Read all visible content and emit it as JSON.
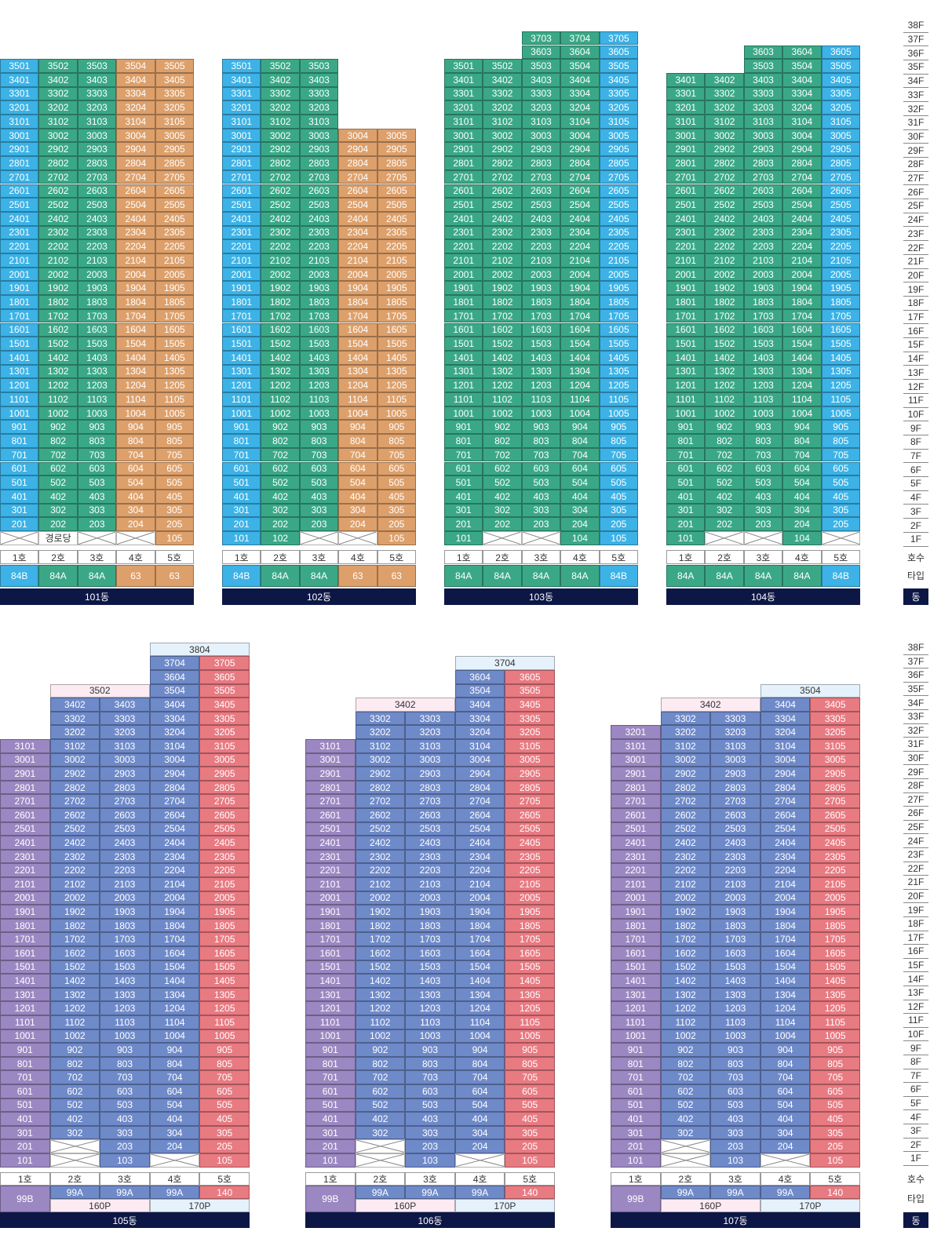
{
  "colors": {
    "blue": "#3cb2e6",
    "teal": "#3aa886",
    "orange": "#dda06b",
    "purple": "#9b87c1",
    "slate": "#6f8ac9",
    "red": "#e87a82",
    "penthouse_pink": "#fcebf3",
    "penthouse_blue": "#e6f2fb",
    "dong_navy": "#0d1746"
  },
  "floors_top": [
    "38F",
    "37F",
    "36F",
    "35F",
    "34F",
    "33F",
    "32F",
    "31F",
    "30F",
    "29F",
    "28F",
    "27F",
    "26F",
    "25F",
    "24F",
    "23F",
    "22F",
    "21F",
    "20F",
    "19F",
    "18F",
    "17F",
    "16F",
    "15F",
    "14F",
    "13F",
    "12F",
    "11F",
    "10F",
    "9F",
    "8F",
    "7F",
    "6F",
    "5F",
    "4F",
    "3F",
    "2F",
    "1F"
  ],
  "floors_bottom": [
    "38F",
    "37F",
    "36F",
    "35F",
    "34F",
    "33F",
    "32F",
    "31F",
    "30F",
    "29F",
    "28F",
    "27F",
    "26F",
    "25F",
    "24F",
    "23F",
    "22F",
    "21F",
    "20F",
    "19F",
    "18F",
    "17F",
    "16F",
    "15F",
    "14F",
    "13F",
    "12F",
    "11F",
    "10F",
    "9F",
    "8F",
    "7F",
    "6F",
    "5F",
    "4F",
    "3F",
    "2F",
    "1F"
  ],
  "legend": {
    "line": "호수",
    "type": "타입",
    "dong": "동"
  },
  "buildings_top": [
    {
      "name": "101동",
      "lines": [
        "1호",
        "2호",
        "3호",
        "4호",
        "5호"
      ],
      "types": [
        "84B",
        "84A",
        "84A",
        "63",
        "63"
      ],
      "col_colors": [
        "blue",
        "teal",
        "teal",
        "orange",
        "orange"
      ],
      "top_floor": [
        35,
        35,
        35,
        35,
        35
      ],
      "first_floor": [
        "x",
        "경로당",
        "x",
        "x",
        "105"
      ]
    },
    {
      "name": "102동",
      "lines": [
        "1호",
        "2호",
        "3호",
        "4호",
        "5호"
      ],
      "types": [
        "84B",
        "84A",
        "84A",
        "63",
        "63"
      ],
      "col_colors": [
        "blue",
        "teal",
        "teal",
        "orange",
        "orange"
      ],
      "top_floor": [
        35,
        35,
        35,
        30,
        30
      ],
      "first_floor": [
        "101",
        "102",
        "x",
        "x",
        "105"
      ]
    },
    {
      "name": "103동",
      "lines": [
        "1호",
        "2호",
        "3호",
        "4호",
        "5호"
      ],
      "types": [
        "84A",
        "84A",
        "84A",
        "84A",
        "84B"
      ],
      "col_colors": [
        "teal",
        "teal",
        "teal",
        "teal",
        "blue"
      ],
      "top_floor": [
        35,
        35,
        37,
        37,
        37
      ],
      "first_floor": [
        "101",
        "x",
        "x",
        "104",
        "105"
      ]
    },
    {
      "name": "104동",
      "lines": [
        "1호",
        "2호",
        "3호",
        "4호",
        "5호"
      ],
      "types": [
        "84A",
        "84A",
        "84A",
        "84A",
        "84B"
      ],
      "col_colors": [
        "teal",
        "teal",
        "teal",
        "teal",
        "blue"
      ],
      "top_floor": [
        34,
        34,
        36,
        36,
        36
      ],
      "first_floor": [
        "101",
        "x",
        "x",
        "104",
        "x"
      ]
    }
  ],
  "buildings_bottom": [
    {
      "name": "105동",
      "lines": [
        "1호",
        "2호",
        "3호",
        "4호",
        "5호"
      ],
      "type_top": [
        "99B",
        "99A",
        "99A",
        "99A",
        "140"
      ],
      "penthouse_types": [
        "160P",
        "170P"
      ],
      "penthouse_top": [
        "3502",
        "3804"
      ],
      "col_colors": [
        "purple",
        "slate",
        "slate",
        "slate",
        "red"
      ],
      "top_floor": [
        31,
        34,
        34,
        37,
        37
      ],
      "first_floor": [
        "101",
        "x",
        "103",
        "x",
        "105"
      ],
      "second_floor": [
        "201",
        "x",
        "203",
        "204",
        "205"
      ],
      "third_floor_2": "302"
    },
    {
      "name": "106동",
      "lines": [
        "1호",
        "2호",
        "3호",
        "4호",
        "5호"
      ],
      "type_top": [
        "99B",
        "99A",
        "99A",
        "99A",
        "140"
      ],
      "penthouse_types": [
        "160P",
        "170P"
      ],
      "penthouse_top": [
        "3402",
        "3704"
      ],
      "col_colors": [
        "purple",
        "slate",
        "slate",
        "slate",
        "red"
      ],
      "top_floor": [
        31,
        33,
        33,
        36,
        36
      ],
      "first_floor": [
        "101",
        "x",
        "103",
        "x",
        "105"
      ],
      "second_floor": [
        "201",
        "x",
        "203",
        "204",
        "205"
      ],
      "third_floor_2": "302"
    },
    {
      "name": "107동",
      "lines": [
        "1호",
        "2호",
        "3호",
        "4호",
        "5호"
      ],
      "type_top": [
        "99B",
        "99A",
        "99A",
        "99A",
        "140"
      ],
      "penthouse_types": [
        "160P",
        "170P"
      ],
      "penthouse_top": [
        "3402",
        "3504"
      ],
      "col_colors": [
        "purple",
        "slate",
        "slate",
        "slate",
        "red"
      ],
      "top_floor": [
        32,
        33,
        33,
        34,
        34
      ],
      "first_floor": [
        "101",
        "x",
        "103",
        "x",
        "105"
      ],
      "second_floor": [
        "201",
        "x",
        "203",
        "204",
        "205"
      ],
      "third_floor_2": "302"
    }
  ]
}
